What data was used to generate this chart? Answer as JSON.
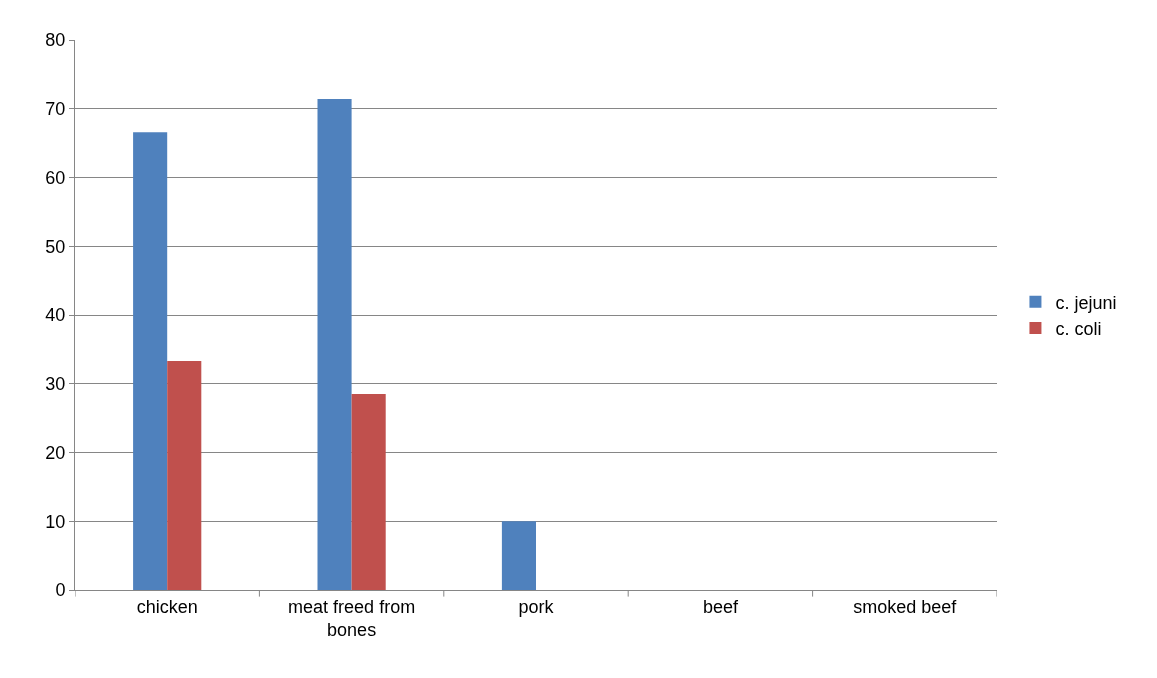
{
  "chart_data": {
    "type": "bar",
    "categories": [
      "chicken",
      "meat freed from bones",
      "pork",
      "beef",
      "smoked beef"
    ],
    "series": [
      {
        "name": "c. jejuni",
        "color": "#4f81bd",
        "values": [
          66.6,
          71.4,
          10,
          0,
          0
        ]
      },
      {
        "name": "c. coli",
        "color": "#c0504d",
        "values": [
          33.3,
          28.5,
          0,
          0,
          0
        ]
      }
    ],
    "ylim": [
      0,
      80
    ],
    "yticks": [
      0,
      10,
      20,
      30,
      40,
      50,
      60,
      70,
      80
    ],
    "grid": "y",
    "legend": "right"
  }
}
